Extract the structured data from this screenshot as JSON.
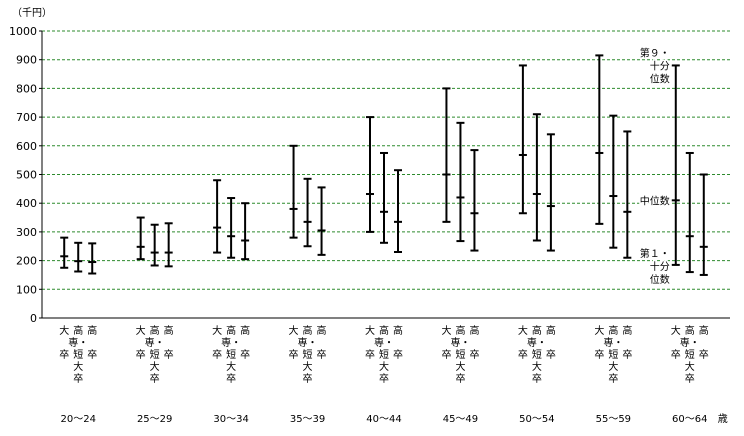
{
  "chart_data": {
    "type": "range",
    "unit_label": "（千円）",
    "ylim": [
      0,
      1000
    ],
    "yticks": [
      0,
      100,
      200,
      300,
      400,
      500,
      600,
      700,
      800,
      900,
      1000
    ],
    "grid": true,
    "age_suffix": "歳",
    "category_labels": [
      [
        "大",
        "",
        "卒"
      ],
      [
        "高",
        "専・",
        "短",
        "大",
        "卒"
      ],
      [
        "高",
        "",
        "卒"
      ]
    ],
    "annotations": {
      "d9": [
        "第９・",
        "十分",
        "位数"
      ],
      "median": [
        "中位数"
      ],
      "d1": [
        "第１・",
        "十分",
        "位数"
      ]
    },
    "groups": [
      {
        "age": "20～24",
        "series": [
          {
            "category": "大卒",
            "d1": 175,
            "median": 215,
            "d9": 280
          },
          {
            "category": "高専・短大卒",
            "d1": 162,
            "median": 198,
            "d9": 262
          },
          {
            "category": "高卒",
            "d1": 155,
            "median": 195,
            "d9": 260
          }
        ]
      },
      {
        "age": "25～29",
        "series": [
          {
            "category": "大卒",
            "d1": 205,
            "median": 248,
            "d9": 350
          },
          {
            "category": "高専・短大卒",
            "d1": 183,
            "median": 228,
            "d9": 325
          },
          {
            "category": "高卒",
            "d1": 180,
            "median": 228,
            "d9": 330
          }
        ]
      },
      {
        "age": "30～34",
        "series": [
          {
            "category": "大卒",
            "d1": 228,
            "median": 315,
            "d9": 480
          },
          {
            "category": "高専・短大卒",
            "d1": 210,
            "median": 285,
            "d9": 418
          },
          {
            "category": "高卒",
            "d1": 205,
            "median": 270,
            "d9": 400
          }
        ]
      },
      {
        "age": "35～39",
        "series": [
          {
            "category": "大卒",
            "d1": 280,
            "median": 380,
            "d9": 600
          },
          {
            "category": "高専・短大卒",
            "d1": 250,
            "median": 335,
            "d9": 485
          },
          {
            "category": "高卒",
            "d1": 220,
            "median": 305,
            "d9": 455
          }
        ]
      },
      {
        "age": "40～44",
        "series": [
          {
            "category": "大卒",
            "d1": 300,
            "median": 432,
            "d9": 700
          },
          {
            "category": "高専・短大卒",
            "d1": 262,
            "median": 370,
            "d9": 575
          },
          {
            "category": "高卒",
            "d1": 230,
            "median": 335,
            "d9": 515
          }
        ]
      },
      {
        "age": "45～49",
        "series": [
          {
            "category": "大卒",
            "d1": 335,
            "median": 500,
            "d9": 800
          },
          {
            "category": "高専・短大卒",
            "d1": 268,
            "median": 420,
            "d9": 680
          },
          {
            "category": "高卒",
            "d1": 235,
            "median": 365,
            "d9": 585
          }
        ]
      },
      {
        "age": "50～54",
        "series": [
          {
            "category": "大卒",
            "d1": 365,
            "median": 568,
            "d9": 880
          },
          {
            "category": "高専・短大卒",
            "d1": 270,
            "median": 432,
            "d9": 710
          },
          {
            "category": "高卒",
            "d1": 235,
            "median": 390,
            "d9": 640
          }
        ]
      },
      {
        "age": "55～59",
        "series": [
          {
            "category": "大卒",
            "d1": 328,
            "median": 575,
            "d9": 915
          },
          {
            "category": "高専・短大卒",
            "d1": 245,
            "median": 425,
            "d9": 705
          },
          {
            "category": "高卒",
            "d1": 210,
            "median": 370,
            "d9": 650
          }
        ]
      },
      {
        "age": "60～64",
        "series": [
          {
            "category": "大卒",
            "d1": 185,
            "median": 410,
            "d9": 880
          },
          {
            "category": "高専・短大卒",
            "d1": 160,
            "median": 285,
            "d9": 575
          },
          {
            "category": "高卒",
            "d1": 150,
            "median": 248,
            "d9": 500
          }
        ]
      }
    ]
  }
}
